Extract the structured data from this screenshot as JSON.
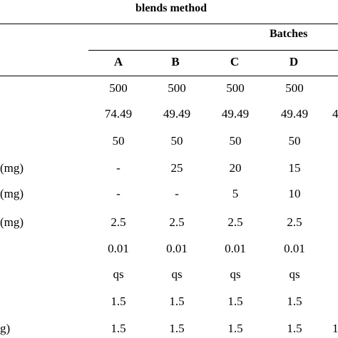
{
  "caption": "blends method",
  "group_header": "Batches",
  "columns": [
    "A",
    "B",
    "C",
    "D"
  ],
  "rows": [
    {
      "label": "",
      "values": [
        "500",
        "500",
        "500",
        "500"
      ],
      "edge": ""
    },
    {
      "label": "",
      "values": [
        "74.49",
        "49.49",
        "49.49",
        "49.49"
      ],
      "edge": "4"
    },
    {
      "label": "",
      "values": [
        "50",
        "50",
        "50",
        "50"
      ],
      "edge": ""
    },
    {
      "label": " (mg)",
      "values": [
        "-",
        "25",
        "20",
        "15"
      ],
      "edge": ""
    },
    {
      "label": "(mg)",
      "values": [
        "-",
        "-",
        "5",
        "10"
      ],
      "edge": ""
    },
    {
      "label": "(mg)",
      "values": [
        "2.5",
        "2.5",
        "2.5",
        "2.5"
      ],
      "edge": ""
    },
    {
      "label": "",
      "values": [
        "0.01",
        "0.01",
        "0.01",
        "0.01"
      ],
      "edge": ""
    },
    {
      "label": "",
      "values": [
        "qs",
        "qs",
        "qs",
        "qs"
      ],
      "edge": ""
    },
    {
      "label": "",
      "values": [
        "1.5",
        "1.5",
        "1.5",
        "1.5"
      ],
      "edge": ""
    },
    {
      "label": "g)",
      "values": [
        "1.5",
        "1.5",
        "1.5",
        "1.5"
      ],
      "edge": "1"
    }
  ]
}
